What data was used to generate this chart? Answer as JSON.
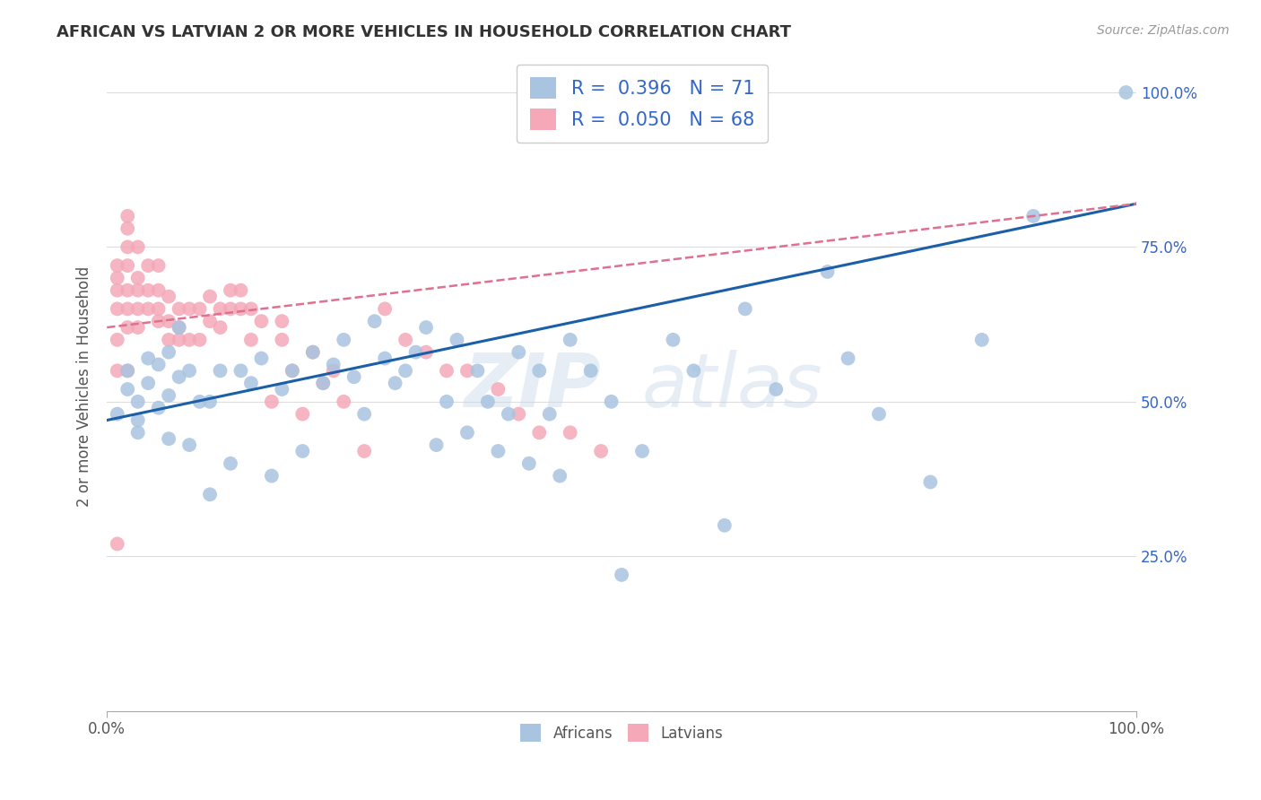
{
  "title": "AFRICAN VS LATVIAN 2 OR MORE VEHICLES IN HOUSEHOLD CORRELATION CHART",
  "source": "Source: ZipAtlas.com",
  "ylabel": "2 or more Vehicles in Household",
  "legend_label1": "Africans",
  "legend_label2": "Latvians",
  "r_african": "0.396",
  "n_african": "71",
  "r_latvian": "0.050",
  "n_latvian": "68",
  "color_african": "#a8c4e0",
  "color_latvian": "#f4a8b8",
  "color_african_line": "#1a5fa8",
  "color_latvian_line": "#e07090",
  "watermark": "ZIPatlas",
  "background_color": "#ffffff",
  "grid_color": "#dddddd",
  "african_x": [
    1,
    2,
    2,
    3,
    3,
    3,
    4,
    4,
    5,
    5,
    6,
    6,
    6,
    7,
    7,
    8,
    8,
    9,
    10,
    10,
    11,
    12,
    13,
    14,
    15,
    16,
    17,
    18,
    19,
    20,
    21,
    22,
    23,
    24,
    25,
    26,
    27,
    28,
    29,
    30,
    31,
    32,
    33,
    34,
    35,
    36,
    37,
    38,
    39,
    40,
    41,
    42,
    43,
    44,
    45,
    47,
    49,
    50,
    52,
    55,
    57,
    60,
    62,
    65,
    70,
    72,
    75,
    80,
    85,
    90,
    99
  ],
  "african_y": [
    48,
    52,
    55,
    45,
    50,
    47,
    53,
    57,
    56,
    49,
    51,
    58,
    44,
    62,
    54,
    43,
    55,
    50,
    50,
    35,
    55,
    40,
    55,
    53,
    57,
    38,
    52,
    55,
    42,
    58,
    53,
    56,
    60,
    54,
    48,
    63,
    57,
    53,
    55,
    58,
    62,
    43,
    50,
    60,
    45,
    55,
    50,
    42,
    48,
    58,
    40,
    55,
    48,
    38,
    60,
    55,
    50,
    22,
    42,
    60,
    55,
    30,
    65,
    52,
    71,
    57,
    48,
    37,
    60,
    80,
    100
  ],
  "latvian_x": [
    1,
    1,
    1,
    1,
    1,
    1,
    1,
    2,
    2,
    2,
    2,
    2,
    2,
    2,
    3,
    3,
    3,
    3,
    3,
    4,
    4,
    4,
    5,
    5,
    5,
    5,
    6,
    6,
    6,
    7,
    7,
    7,
    8,
    8,
    9,
    9,
    10,
    10,
    11,
    11,
    12,
    12,
    13,
    13,
    14,
    14,
    15,
    16,
    17,
    17,
    18,
    19,
    20,
    21,
    22,
    23,
    25,
    27,
    29,
    31,
    33,
    35,
    38,
    40,
    42,
    45,
    48,
    2
  ],
  "latvian_y": [
    27,
    55,
    60,
    65,
    68,
    70,
    72,
    55,
    62,
    65,
    68,
    72,
    75,
    78,
    62,
    65,
    68,
    70,
    75,
    65,
    68,
    72,
    63,
    65,
    68,
    72,
    60,
    63,
    67,
    60,
    62,
    65,
    60,
    65,
    60,
    65,
    63,
    67,
    62,
    65,
    65,
    68,
    65,
    68,
    60,
    65,
    63,
    50,
    60,
    63,
    55,
    48,
    58,
    53,
    55,
    50,
    42,
    65,
    60,
    58,
    55,
    55,
    52,
    48,
    45,
    45,
    42,
    80
  ]
}
